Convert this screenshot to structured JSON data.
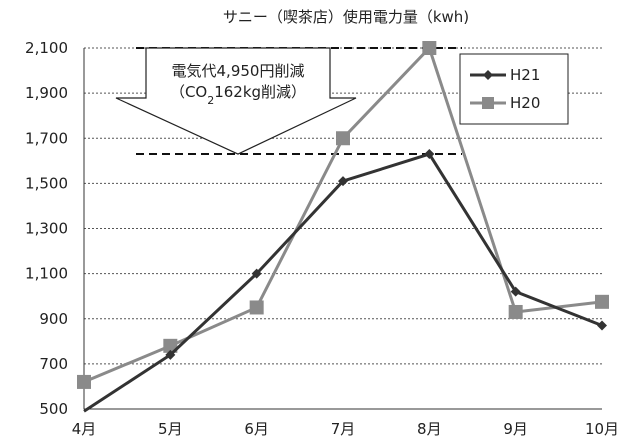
{
  "chart_data": {
    "type": "line",
    "title": "サニー（喫茶店）使用電力量（kwh)",
    "xlabel": "",
    "ylabel": "",
    "categories": [
      "4月",
      "5月",
      "6月",
      "7月",
      "8月",
      "9月",
      "10月"
    ],
    "ylim": [
      500,
      2100
    ],
    "yticks": [
      500,
      700,
      900,
      1100,
      1300,
      1500,
      1700,
      1900,
      2100
    ],
    "ytick_labels": [
      "500",
      "700",
      "900",
      "1,100",
      "1,300",
      "1,500",
      "1,700",
      "1,900",
      "2,100"
    ],
    "grid": true,
    "legend_position": "top-right",
    "series": [
      {
        "name": "H21",
        "marker": "diamond",
        "color": "#333333",
        "values": [
          490,
          740,
          1100,
          1510,
          1630,
          1020,
          870
        ]
      },
      {
        "name": "H20",
        "marker": "square",
        "color": "#8a8a8a",
        "values": [
          620,
          780,
          950,
          1700,
          2100,
          930,
          975
        ]
      }
    ],
    "annotation": {
      "line1": "電気代4,950円削減",
      "line2_prefix": "（CO",
      "line2_sub": "2",
      "line2_suffix": "162kg削減）",
      "upper_ref": 2100,
      "lower_ref": 1630
    }
  }
}
